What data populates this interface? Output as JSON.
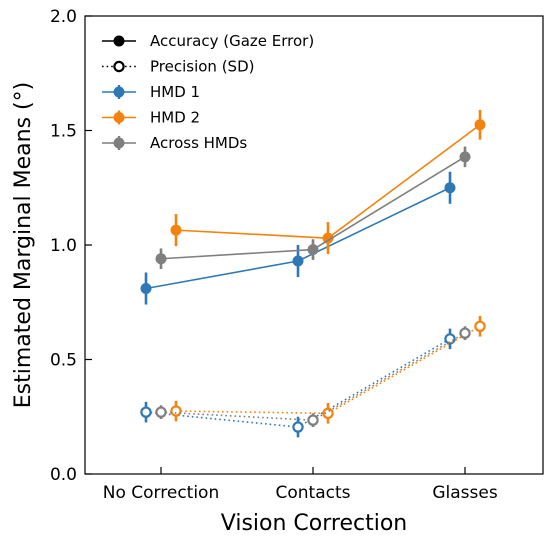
{
  "chart_data": {
    "type": "line",
    "xlabel": "Vision Correction",
    "ylabel": "Estimated Marginal Means (°)",
    "categories": [
      "No Correction",
      "Contacts",
      "Glasses"
    ],
    "ylim": [
      0.0,
      2.0
    ],
    "yticks": [
      "0.0",
      "0.5",
      "1.0",
      "1.5",
      "2.0"
    ],
    "grid": false,
    "legend_position": "top-left",
    "legend": [
      {
        "label": "Accuracy (Gaze Error)",
        "style": "solid",
        "marker": "filled",
        "color": "#000000"
      },
      {
        "label": "Precision (SD)",
        "style": "dotted",
        "marker": "open",
        "color": "#000000"
      },
      {
        "label": "HMD 1",
        "style": "solid",
        "marker": "filled",
        "color": "#2e79b5"
      },
      {
        "label": "HMD 2",
        "style": "solid",
        "marker": "filled",
        "color": "#f5820d"
      },
      {
        "label": "Across HMDs",
        "style": "solid",
        "marker": "filled",
        "color": "#7f7f7f"
      }
    ],
    "series": [
      {
        "name": "HMD 1",
        "metric": "Accuracy (Gaze Error)",
        "color": "#2e79b5",
        "offset": -1,
        "style": "solid",
        "marker": "filled",
        "values": [
          0.81,
          0.93,
          1.25
        ],
        "err": [
          0.07,
          0.07,
          0.07
        ]
      },
      {
        "name": "HMD 2",
        "metric": "Accuracy (Gaze Error)",
        "color": "#f5820d",
        "offset": 1,
        "style": "solid",
        "marker": "filled",
        "values": [
          1.065,
          1.03,
          1.525
        ],
        "err": [
          0.07,
          0.07,
          0.065
        ]
      },
      {
        "name": "Across HMDs",
        "metric": "Accuracy (Gaze Error)",
        "color": "#7f7f7f",
        "offset": 0,
        "style": "solid",
        "marker": "filled",
        "values": [
          0.94,
          0.98,
          1.385
        ],
        "err": [
          0.045,
          0.045,
          0.045
        ]
      },
      {
        "name": "HMD 1",
        "metric": "Precision (SD)",
        "color": "#2e79b5",
        "offset": -1,
        "style": "dotted",
        "marker": "open",
        "values": [
          0.27,
          0.205,
          0.59
        ],
        "err": [
          0.045,
          0.045,
          0.045
        ]
      },
      {
        "name": "HMD 2",
        "metric": "Precision (SD)",
        "color": "#f5820d",
        "offset": 1,
        "style": "dotted",
        "marker": "open",
        "values": [
          0.275,
          0.265,
          0.645
        ],
        "err": [
          0.045,
          0.045,
          0.045
        ]
      },
      {
        "name": "Across HMDs",
        "metric": "Precision (SD)",
        "color": "#7f7f7f",
        "offset": 0,
        "style": "dotted",
        "marker": "open",
        "values": [
          0.27,
          0.235,
          0.615
        ],
        "err": [
          0.03,
          0.03,
          0.03
        ]
      }
    ]
  }
}
